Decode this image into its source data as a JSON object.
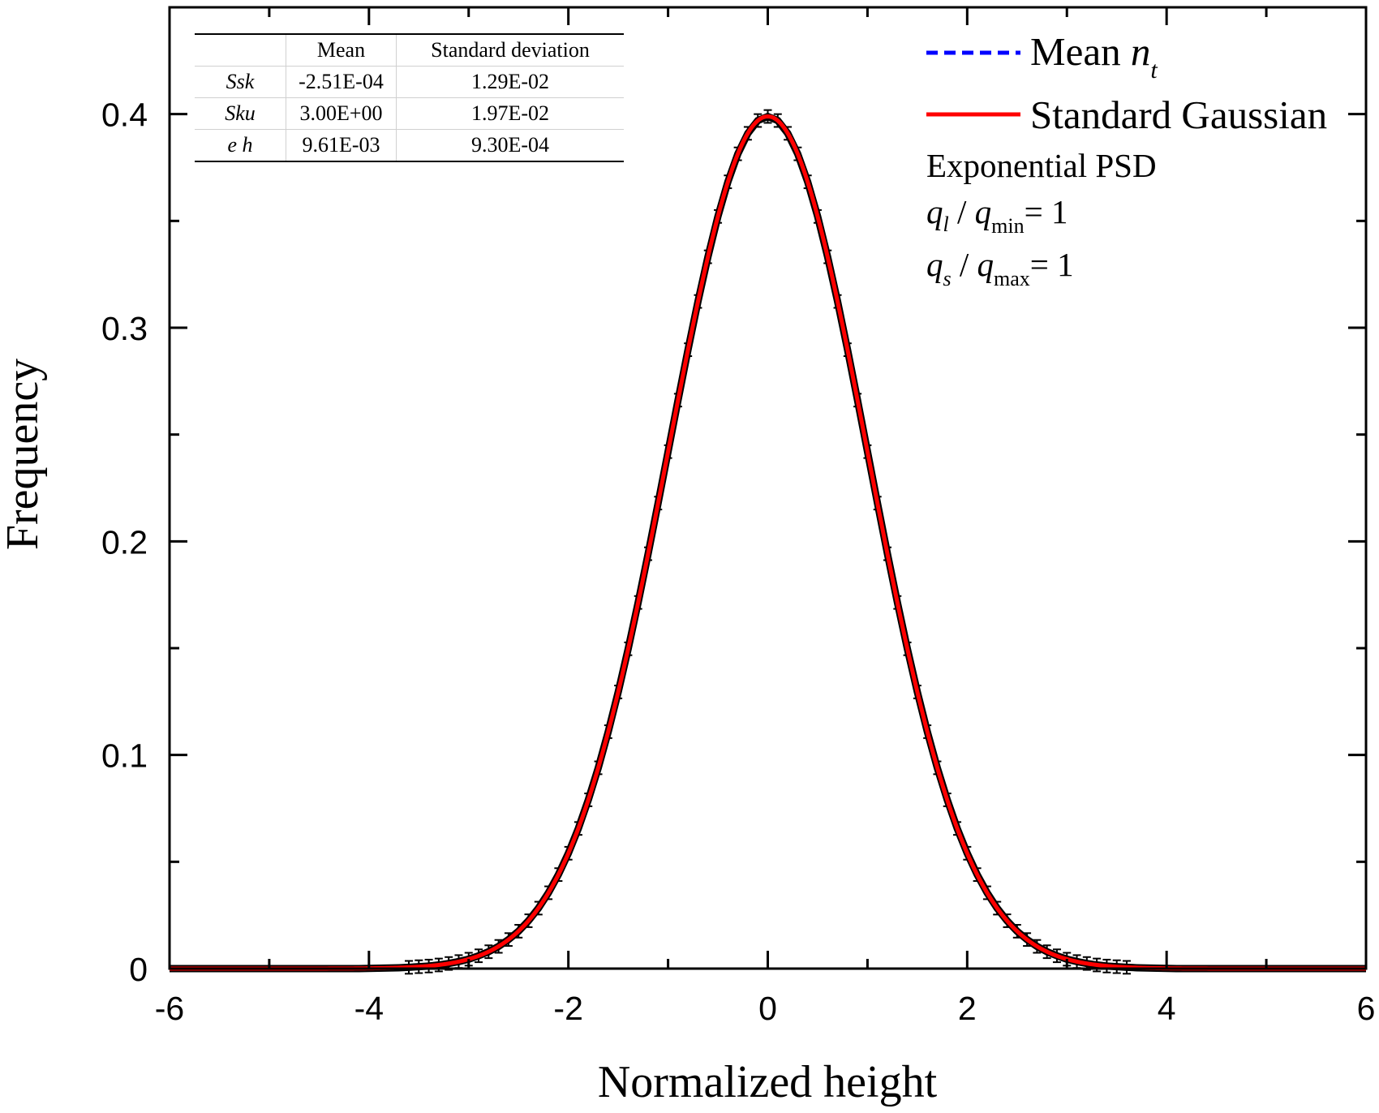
{
  "chart_data": {
    "type": "line",
    "xlabel": "Normalized height",
    "ylabel": "Frequency",
    "xlim": [
      -6,
      6
    ],
    "ylim": [
      0,
      0.45
    ],
    "x_ticks": [
      "-6",
      "-4",
      "-2",
      "0",
      "2",
      "4",
      "6"
    ],
    "x_tick_values": [
      -6,
      -4,
      -2,
      0,
      2,
      4,
      6
    ],
    "y_ticks": [
      "0",
      "0.1",
      "0.2",
      "0.3",
      "0.4"
    ],
    "y_tick_values": [
      0,
      0.1,
      0.2,
      0.3,
      0.4
    ],
    "grid": false,
    "legend_position": "top-right",
    "x_start": -6,
    "x_step": 0.1,
    "series": [
      {
        "name": "Mean n_t",
        "label_main": "Mean ",
        "label_italic": "n",
        "label_sub": "t",
        "color": "#0000ff",
        "style": "dashed",
        "error_bar": 0.003,
        "values": [
          0,
          0,
          0,
          0,
          0,
          0,
          0,
          0,
          0,
          0,
          0,
          0,
          0,
          0,
          0,
          0,
          0,
          0,
          0,
          0,
          0.0001,
          0.0002,
          0.0003,
          0.0004,
          0.0006,
          0.0009,
          0.0012,
          0.0017,
          0.0024,
          0.0033,
          0.0044,
          0.006,
          0.0079,
          0.0104,
          0.0136,
          0.0175,
          0.0224,
          0.0283,
          0.0355,
          0.044,
          0.054,
          0.0656,
          0.079,
          0.094,
          0.1109,
          0.1295,
          0.1497,
          0.1714,
          0.1942,
          0.2179,
          0.242,
          0.2661,
          0.2897,
          0.3123,
          0.3332,
          0.3521,
          0.3683,
          0.3814,
          0.391,
          0.397,
          0.3989,
          0.397,
          0.391,
          0.3814,
          0.3683,
          0.3521,
          0.3332,
          0.3123,
          0.2897,
          0.2661,
          0.242,
          0.2179,
          0.1942,
          0.1714,
          0.1497,
          0.1295,
          0.1109,
          0.094,
          0.079,
          0.0656,
          0.054,
          0.044,
          0.0355,
          0.0283,
          0.0224,
          0.0175,
          0.0136,
          0.0104,
          0.0079,
          0.006,
          0.0044,
          0.0033,
          0.0024,
          0.0017,
          0.0012,
          0.0009,
          0.0006,
          0.0004,
          0.0003,
          0.0002,
          0.0001,
          0,
          0,
          0,
          0,
          0,
          0,
          0,
          0,
          0,
          0,
          0,
          0,
          0,
          0,
          0,
          0,
          0,
          0,
          0,
          0
        ]
      },
      {
        "name": "Standard Gaussian",
        "color": "#ff0000",
        "style": "solid",
        "formula": "exp(-x^2/2)/sqrt(2*pi)"
      }
    ],
    "annotations": {
      "psd": "Exponential PSD",
      "ratio1": {
        "q": "q",
        "sub1": "l",
        "sep": " / ",
        "q2": "q",
        "sub2": "min",
        "eq": "= 1"
      },
      "ratio2": {
        "q": "q",
        "sub1": "s",
        "sep": " / ",
        "q2": "q",
        "sub2": "max",
        "eq": "= 1"
      }
    },
    "table": {
      "headers": [
        "",
        "Mean",
        "Standard deviation"
      ],
      "rows": [
        [
          "Ssk",
          "-2.51E-04",
          "1.29E-02"
        ],
        [
          "Sku",
          "3.00E+00",
          "1.97E-02"
        ],
        [
          "e h",
          "9.61E-03",
          "9.30E-04"
        ]
      ]
    }
  }
}
